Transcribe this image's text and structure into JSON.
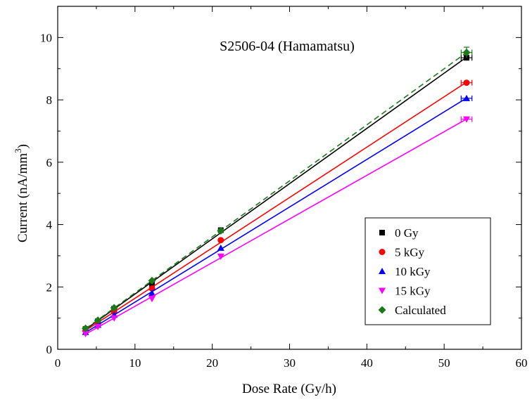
{
  "chart_data": {
    "type": "scatter",
    "title": "S2506-04 (Hamamatsu)",
    "xlabel": "Dose Rate (Gy/h)",
    "ylabel_main": "Current (nA/mm",
    "ylabel_sup": "3",
    "ylabel_close": ")",
    "xlim": [
      0,
      60
    ],
    "ylim": [
      0,
      11
    ],
    "xticks": [
      "0",
      "10",
      "20",
      "30",
      "40",
      "50",
      "60"
    ],
    "yticks": [
      "0",
      "2",
      "4",
      "6",
      "8",
      "10"
    ],
    "x": [
      3.6,
      5.2,
      7.3,
      12.2,
      21.1,
      52.9
    ],
    "legend_position": "lower-right",
    "series": [
      {
        "name": "0 Gy",
        "marker": "square",
        "color": "#000000",
        "values": [
          0.65,
          0.9,
          1.3,
          2.1,
          3.82,
          9.35
        ],
        "fit": "solid"
      },
      {
        "name": "5 kGy",
        "marker": "circle",
        "color": "#ff0000",
        "values": [
          0.6,
          0.85,
          1.2,
          1.95,
          3.5,
          8.55
        ],
        "fit": "solid"
      },
      {
        "name": "10 kGy",
        "marker": "triangle-up",
        "color": "#0000ff",
        "values": [
          0.55,
          0.78,
          1.1,
          1.8,
          3.25,
          8.05
        ],
        "fit": "solid"
      },
      {
        "name": "15 kGy",
        "marker": "triangle-down",
        "color": "#ff00ff",
        "values": [
          0.5,
          0.72,
          1.0,
          1.62,
          2.98,
          7.38
        ],
        "fit": "solid"
      },
      {
        "name": "Calculated",
        "marker": "diamond",
        "color": "#1a7a1a",
        "values": [
          0.67,
          0.93,
          1.33,
          2.2,
          3.8,
          9.52
        ],
        "fit": "dashed"
      }
    ]
  }
}
